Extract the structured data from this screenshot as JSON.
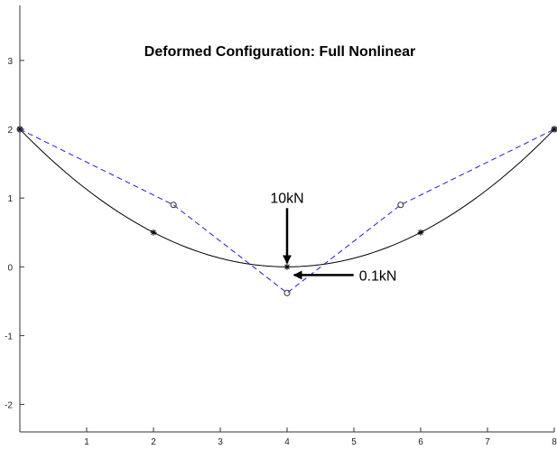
{
  "chart_data": {
    "type": "line",
    "title": "Deformed Configuration: Full Nonlinear",
    "xlabel": "",
    "ylabel": "",
    "xlim": [
      0,
      8
    ],
    "ylim": [
      -2.4,
      3.8
    ],
    "x_ticks": [
      1,
      2,
      3,
      4,
      5,
      6,
      7,
      8
    ],
    "y_ticks": [
      -2,
      -1,
      0,
      1,
      2,
      3
    ],
    "grid": false,
    "series": [
      {
        "style": "solid-curve",
        "color": "#000000",
        "marker": "asterisk",
        "curve": {
          "type": "parabola",
          "x_range": [
            0,
            8
          ],
          "vertex": [
            4,
            0
          ],
          "y_at_ends": 2
        },
        "markers": [
          [
            0,
            2
          ],
          [
            2,
            0.5
          ],
          [
            4,
            0
          ],
          [
            6,
            0.5
          ],
          [
            8,
            2
          ]
        ]
      },
      {
        "style": "dashed",
        "color": "#1f1fd6",
        "marker": "circle",
        "points": [
          [
            0,
            2
          ],
          [
            2.3,
            0.9
          ],
          [
            4,
            -0.38
          ],
          [
            5.7,
            0.9
          ],
          [
            8,
            2
          ]
        ]
      }
    ],
    "annotations": [
      {
        "text": "10kN",
        "direction": "down",
        "point_to": [
          4,
          0
        ]
      },
      {
        "text": "0.1kN",
        "direction": "left",
        "point_to": [
          4.05,
          -0.12
        ]
      }
    ]
  }
}
